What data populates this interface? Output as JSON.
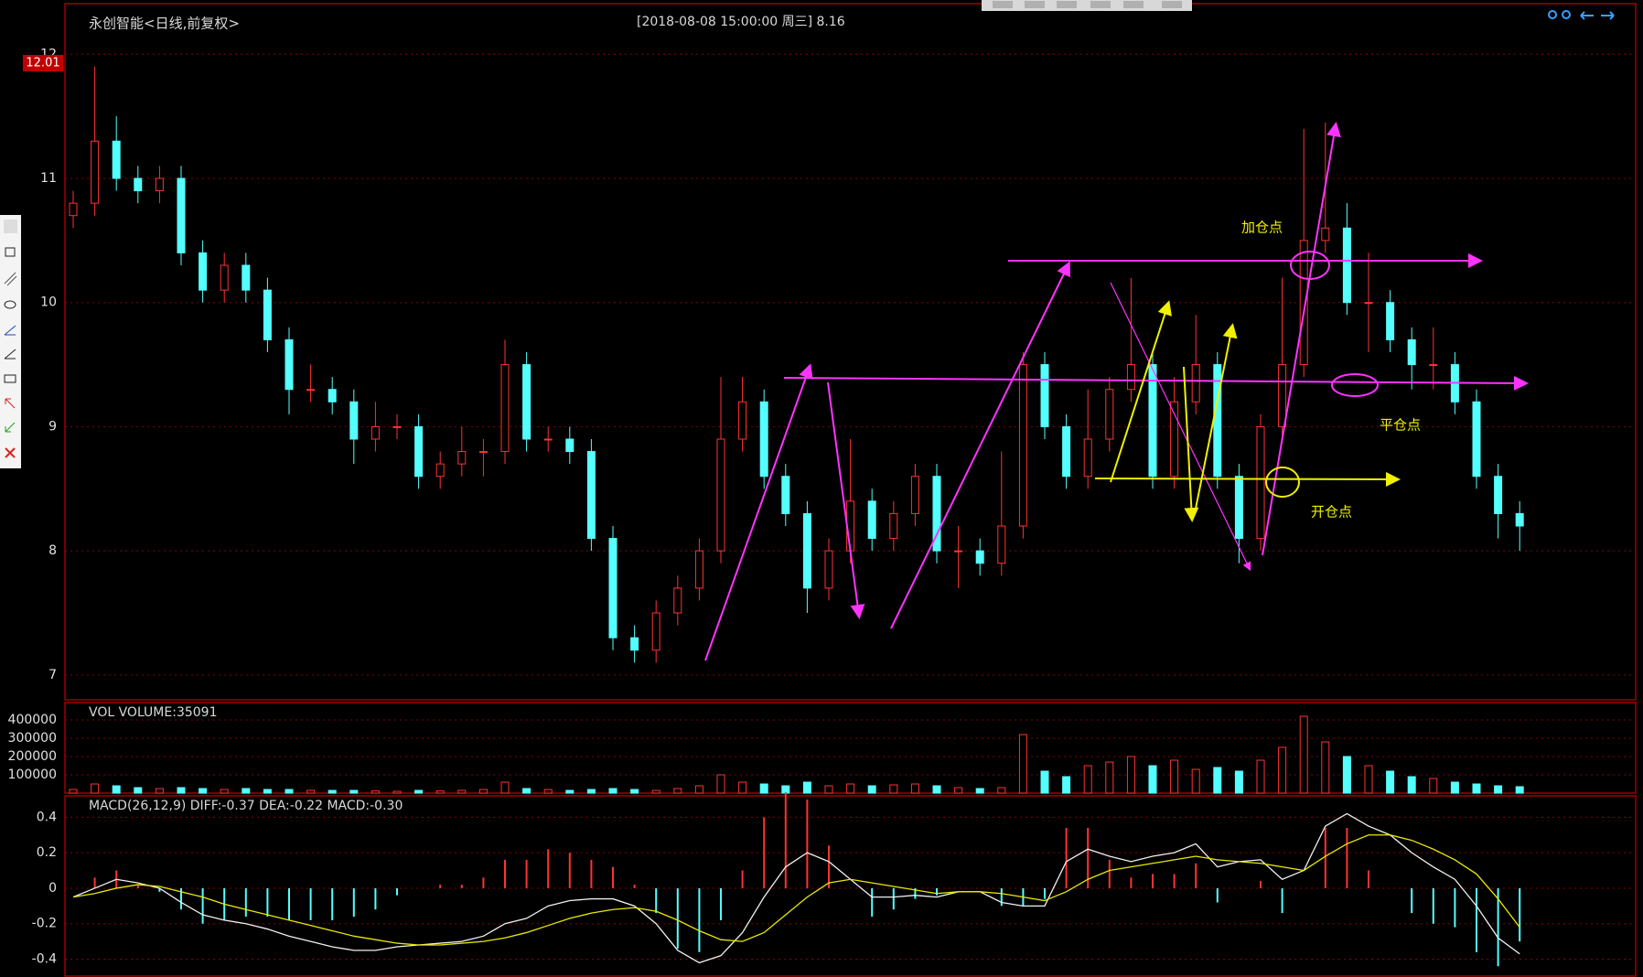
{
  "chart_data": [
    {
      "type": "candlestick",
      "title": "永创智能<日线,前复权>",
      "subtitle": "[2018-08-08  15:00:00 周三]   8.16",
      "price_tag": "12.01",
      "annotations": [
        "加仓点",
        "平仓点",
        "开仓点"
      ],
      "up_color": "#ff3232",
      "down_color": "#54ffff",
      "grid": true,
      "ylim": [
        6.8,
        12.4
      ],
      "yticks": [
        7,
        8,
        9,
        10,
        11,
        12
      ],
      "open": [
        10.7,
        10.8,
        11.3,
        11.0,
        10.9,
        11.0,
        10.4,
        10.1,
        10.3,
        10.1,
        9.7,
        9.3,
        9.3,
        9.2,
        8.9,
        9.0,
        9.0,
        8.6,
        8.7,
        8.8,
        8.8,
        9.5,
        8.9,
        8.9,
        8.8,
        8.1,
        7.3,
        7.2,
        7.5,
        7.7,
        8.0,
        8.9,
        9.2,
        8.6,
        8.3,
        7.7,
        8.0,
        8.4,
        8.1,
        8.3,
        8.6,
        8.0,
        8.0,
        7.9,
        8.2,
        9.5,
        9.0,
        8.6,
        8.9,
        9.3,
        9.5,
        8.6,
        9.2,
        9.5,
        8.6,
        8.1,
        9.0,
        9.5,
        10.5,
        10.6,
        10.0,
        10.0,
        9.7,
        9.5,
        9.5,
        9.2,
        8.6,
        8.3
      ],
      "high": [
        10.9,
        11.9,
        11.5,
        11.1,
        11.1,
        11.1,
        10.5,
        10.4,
        10.4,
        10.2,
        9.8,
        9.5,
        9.4,
        9.3,
        9.2,
        9.1,
        9.1,
        8.8,
        9.0,
        8.9,
        9.7,
        9.6,
        9.0,
        9.0,
        8.9,
        8.2,
        7.4,
        7.6,
        7.8,
        8.1,
        9.4,
        9.4,
        9.3,
        8.7,
        8.4,
        8.1,
        8.9,
        8.5,
        8.4,
        8.7,
        8.7,
        8.2,
        8.1,
        8.8,
        9.6,
        9.6,
        9.1,
        9.3,
        9.4,
        10.2,
        9.6,
        9.4,
        9.9,
        9.6,
        8.7,
        9.1,
        10.2,
        11.4,
        11.45,
        10.8,
        10.4,
        10.1,
        9.8,
        9.8,
        9.6,
        9.3,
        8.7,
        8.4
      ],
      "low": [
        10.6,
        10.7,
        10.9,
        10.8,
        10.8,
        10.3,
        10.0,
        10.0,
        10.0,
        9.6,
        9.1,
        9.2,
        9.1,
        8.7,
        8.8,
        8.9,
        8.5,
        8.5,
        8.6,
        8.6,
        8.7,
        8.8,
        8.8,
        8.7,
        8.0,
        7.2,
        7.1,
        7.1,
        7.4,
        7.6,
        7.9,
        8.8,
        8.5,
        8.2,
        7.5,
        7.6,
        7.9,
        8.0,
        8.0,
        8.2,
        7.9,
        7.7,
        7.8,
        7.8,
        8.1,
        8.9,
        8.5,
        8.5,
        8.8,
        9.2,
        8.5,
        8.5,
        9.1,
        8.5,
        7.9,
        8.0,
        8.9,
        9.4,
        10.4,
        9.9,
        9.6,
        9.6,
        9.3,
        9.3,
        9.1,
        8.5,
        8.1,
        8.0
      ],
      "close": [
        10.8,
        11.3,
        11.0,
        10.9,
        11.0,
        10.4,
        10.1,
        10.3,
        10.1,
        9.7,
        9.3,
        9.3,
        9.2,
        8.9,
        9.0,
        9.0,
        8.6,
        8.7,
        8.8,
        8.8,
        9.5,
        8.9,
        8.9,
        8.8,
        8.1,
        7.3,
        7.2,
        7.5,
        7.7,
        8.0,
        8.9,
        9.2,
        8.6,
        8.3,
        7.7,
        8.0,
        8.4,
        8.1,
        8.3,
        8.6,
        8.0,
        8.0,
        7.9,
        8.2,
        9.5,
        9.0,
        8.6,
        8.9,
        9.3,
        9.5,
        8.6,
        9.2,
        9.5,
        8.6,
        8.1,
        9.0,
        9.5,
        10.5,
        10.6,
        10.0,
        10.0,
        9.7,
        9.5,
        9.5,
        9.2,
        8.6,
        8.3,
        8.2
      ]
    },
    {
      "type": "bar",
      "label": "VOL  VOLUME:35091",
      "grid": true,
      "ylim": [
        0,
        485000
      ],
      "yticks": [
        100000,
        200000,
        300000,
        400000
      ],
      "values": [
        20000,
        50000,
        40000,
        30000,
        25000,
        30000,
        25000,
        20000,
        25000,
        20000,
        20000,
        15000,
        15000,
        15000,
        12000,
        10000,
        15000,
        12000,
        15000,
        20000,
        60000,
        25000,
        20000,
        15000,
        20000,
        25000,
        20000,
        15000,
        25000,
        40000,
        100000,
        60000,
        50000,
        40000,
        60000,
        40000,
        50000,
        40000,
        45000,
        50000,
        40000,
        30000,
        25000,
        30000,
        320000,
        120000,
        90000,
        150000,
        170000,
        200000,
        150000,
        180000,
        130000,
        140000,
        120000,
        180000,
        250000,
        420000,
        280000,
        200000,
        150000,
        120000,
        90000,
        80000,
        60000,
        50000,
        40000,
        35091
      ]
    },
    {
      "type": "macd",
      "label": "MACD(26,12,9)  DIFF:-0.37 DEA:-0.22 MACD:-0.30",
      "grid": true,
      "ylim": [
        -0.49,
        0.51
      ],
      "yticks": [
        0.4,
        0.2,
        0,
        -0.2,
        -0.4
      ],
      "series": [
        {
          "style": "line",
          "color": "#f0f0f0",
          "values": [
            -0.05,
            0.0,
            0.05,
            0.03,
            0.0,
            -0.08,
            -0.15,
            -0.18,
            -0.2,
            -0.23,
            -0.27,
            -0.3,
            -0.33,
            -0.35,
            -0.35,
            -0.33,
            -0.32,
            -0.31,
            -0.3,
            -0.27,
            -0.2,
            -0.17,
            -0.1,
            -0.07,
            -0.06,
            -0.06,
            -0.1,
            -0.2,
            -0.35,
            -0.42,
            -0.38,
            -0.25,
            -0.05,
            0.12,
            0.2,
            0.15,
            0.05,
            -0.05,
            -0.05,
            -0.04,
            -0.05,
            -0.02,
            -0.02,
            -0.08,
            -0.1,
            -0.1,
            0.15,
            0.22,
            0.18,
            0.15,
            0.18,
            0.2,
            0.25,
            0.12,
            0.15,
            0.16,
            0.05,
            0.1,
            0.35,
            0.42,
            0.35,
            0.3,
            0.2,
            0.12,
            0.05,
            -0.1,
            -0.28,
            -0.37
          ]
        },
        {
          "style": "line",
          "color": "#e8e800",
          "values": [
            -0.05,
            -0.03,
            0.0,
            0.02,
            0.01,
            -0.02,
            -0.05,
            -0.09,
            -0.12,
            -0.15,
            -0.18,
            -0.21,
            -0.24,
            -0.27,
            -0.29,
            -0.31,
            -0.32,
            -0.32,
            -0.31,
            -0.3,
            -0.28,
            -0.25,
            -0.21,
            -0.17,
            -0.14,
            -0.12,
            -0.11,
            -0.13,
            -0.18,
            -0.24,
            -0.29,
            -0.3,
            -0.25,
            -0.15,
            -0.05,
            0.03,
            0.05,
            0.03,
            0.01,
            -0.01,
            -0.03,
            -0.02,
            -0.02,
            -0.03,
            -0.05,
            -0.07,
            -0.02,
            0.05,
            0.1,
            0.12,
            0.14,
            0.16,
            0.18,
            0.16,
            0.15,
            0.14,
            0.12,
            0.1,
            0.18,
            0.25,
            0.3,
            0.3,
            0.27,
            0.22,
            0.16,
            0.08,
            -0.06,
            -0.22
          ]
        },
        {
          "style": "bar",
          "color": "#ff3232",
          "negative_color": "#54ffff",
          "values": [
            0,
            0.06,
            0.1,
            0.02,
            -0.02,
            -0.12,
            -0.2,
            -0.18,
            -0.16,
            -0.16,
            -0.18,
            -0.18,
            -0.18,
            -0.16,
            -0.12,
            -0.04,
            0,
            0.02,
            0.02,
            0.06,
            0.16,
            0.16,
            0.22,
            0.2,
            0.16,
            0.12,
            0.02,
            -0.14,
            -0.34,
            -0.36,
            -0.18,
            0.1,
            0.4,
            0.54,
            0.5,
            0.24,
            0,
            -0.16,
            -0.12,
            -0.06,
            -0.04,
            0,
            0,
            -0.1,
            -0.1,
            -0.06,
            0.34,
            0.34,
            0.16,
            0.06,
            0.08,
            0.08,
            0.14,
            -0.08,
            0,
            0.04,
            -0.14,
            0,
            0.34,
            0.34,
            0.1,
            0,
            -0.14,
            -0.2,
            -0.22,
            -0.36,
            -0.44,
            -0.3
          ]
        }
      ]
    }
  ]
}
